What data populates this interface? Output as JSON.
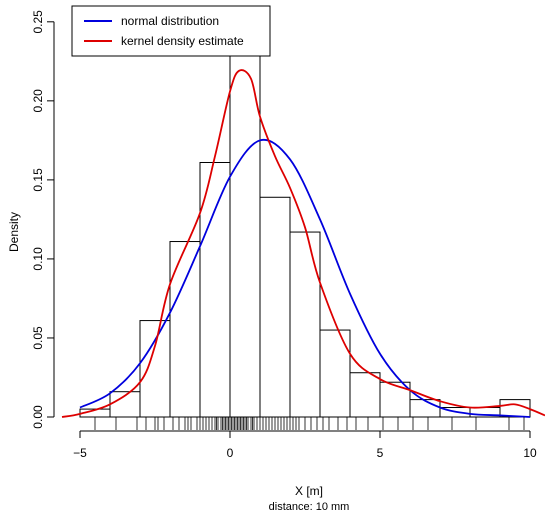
{
  "chart_data": {
    "type": "histogram",
    "xlabel": "X [m]",
    "xsublabel": "distance: 10 mm",
    "ylabel": "Density",
    "xlim": [
      -5.5,
      10.5
    ],
    "ylim": [
      0,
      0.26
    ],
    "x_ticks": [
      -5,
      0,
      5,
      10
    ],
    "x_tick_labels": [
      "−5",
      "0",
      "5",
      "10"
    ],
    "y_ticks": [
      0,
      0.05,
      0.1,
      0.15,
      0.2,
      0.25
    ],
    "y_tick_labels": [
      "0.00",
      "0.05",
      "0.10",
      "0.15",
      "0.20",
      "0.25"
    ],
    "bins": [
      {
        "x0": -5,
        "x1": -4,
        "density": 0.005
      },
      {
        "x0": -4,
        "x1": -3,
        "density": 0.016
      },
      {
        "x0": -3,
        "x1": -2,
        "density": 0.061
      },
      {
        "x0": -2,
        "x1": -1,
        "density": 0.111
      },
      {
        "x0": -1,
        "x1": 0,
        "density": 0.161
      },
      {
        "x0": 0,
        "x1": 1,
        "density": 0.251
      },
      {
        "x0": 1,
        "x1": 2,
        "density": 0.139
      },
      {
        "x0": 2,
        "x1": 3,
        "density": 0.117
      },
      {
        "x0": 3,
        "x1": 4,
        "density": 0.055
      },
      {
        "x0": 4,
        "x1": 5,
        "density": 0.028
      },
      {
        "x0": 5,
        "x1": 6,
        "density": 0.022
      },
      {
        "x0": 6,
        "x1": 7,
        "density": 0.011
      },
      {
        "x0": 7,
        "x1": 8,
        "density": 0.006
      },
      {
        "x0": 8,
        "x1": 9,
        "density": 0.006
      },
      {
        "x0": 9,
        "x1": 10,
        "density": 0.011
      }
    ],
    "series": [
      {
        "name": "normal distribution",
        "color": "#0000dd",
        "x": [
          -5,
          -4,
          -3,
          -2,
          -1,
          0,
          1,
          2,
          3,
          4,
          5,
          6,
          7,
          8,
          9,
          10
        ],
        "y": [
          0.006,
          0.015,
          0.034,
          0.066,
          0.108,
          0.152,
          0.175,
          0.163,
          0.125,
          0.078,
          0.04,
          0.017,
          0.006,
          0.002,
          0.001,
          0.0
        ]
      },
      {
        "name": "kernel density estimate",
        "color": "#dd0000",
        "x": [
          -5.6,
          -5,
          -4,
          -3,
          -2.5,
          -2,
          -1,
          -0.5,
          0,
          0.3,
          0.7,
          1,
          1.5,
          2,
          2.5,
          3,
          4,
          5,
          6,
          7,
          8,
          9,
          9.5,
          10,
          10.5
        ],
        "y": [
          0.0,
          0.002,
          0.008,
          0.022,
          0.045,
          0.084,
          0.129,
          0.165,
          0.206,
          0.219,
          0.214,
          0.19,
          0.165,
          0.145,
          0.12,
          0.085,
          0.04,
          0.024,
          0.017,
          0.01,
          0.006,
          0.007,
          0.008,
          0.005,
          0.001
        ]
      }
    ],
    "rug": [
      -4.5,
      -3.8,
      -3.1,
      -2.8,
      -2.5,
      -2.4,
      -2.2,
      -1.9,
      -1.7,
      -1.5,
      -1.4,
      -1.3,
      -1.1,
      -1.0,
      -0.9,
      -0.8,
      -0.7,
      -0.6,
      -0.5,
      -0.45,
      -0.4,
      -0.3,
      -0.25,
      -0.2,
      -0.15,
      -0.1,
      -0.05,
      0.0,
      0.05,
      0.1,
      0.15,
      0.2,
      0.25,
      0.3,
      0.35,
      0.4,
      0.45,
      0.5,
      0.55,
      0.6,
      0.7,
      0.75,
      0.8,
      0.9,
      1.0,
      1.1,
      1.2,
      1.3,
      1.4,
      1.5,
      1.6,
      1.7,
      1.8,
      1.9,
      2.0,
      2.1,
      2.2,
      2.3,
      2.5,
      2.7,
      2.9,
      3.1,
      3.3,
      3.6,
      3.9,
      4.2,
      4.6,
      5.1,
      5.6,
      6.1,
      6.6,
      7.4,
      8.2,
      9.3,
      9.8
    ],
    "legend": {
      "position": "top-left",
      "entries": [
        "normal distribution",
        "kernel density estimate"
      ]
    }
  }
}
